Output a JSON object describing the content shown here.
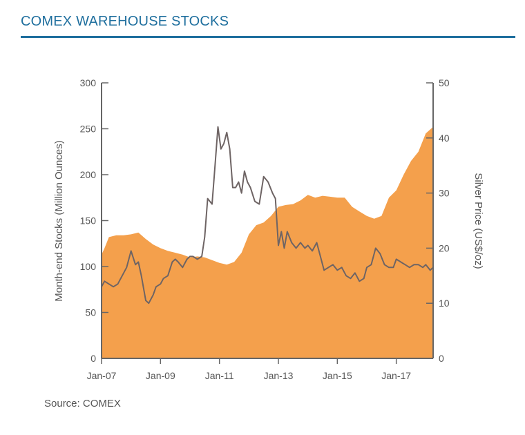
{
  "header": {
    "title": "COMEX WAREHOUSE STOCKS"
  },
  "footer": {
    "source": "Source: COMEX"
  },
  "colors": {
    "accent": "#1f6f9e",
    "area": "#f4a04c",
    "line": "#6e6464",
    "axis": "#666666"
  },
  "chart_data": {
    "type": "area",
    "title": "COMEX WAREHOUSE STOCKS",
    "ylabel": "Month-end Stocks (Million Ounces)",
    "y2label": "Silver Price (US$/oz)",
    "xlim": [
      2007.0,
      2018.25
    ],
    "ylim": [
      0,
      300
    ],
    "y2lim": [
      0,
      50
    ],
    "x_ticks": [
      {
        "value": 2007.0,
        "label": "Jan-07"
      },
      {
        "value": 2009.0,
        "label": "Jan-09"
      },
      {
        "value": 2011.0,
        "label": "Jan-11"
      },
      {
        "value": 2013.0,
        "label": "Jan-13"
      },
      {
        "value": 2015.0,
        "label": "Jan-15"
      },
      {
        "value": 2017.0,
        "label": "Jan-17"
      }
    ],
    "y_ticks": [
      0,
      50,
      100,
      150,
      200,
      250,
      300
    ],
    "y2_ticks": [
      0,
      10,
      20,
      30,
      40,
      50
    ],
    "series": [
      {
        "name": "Month-end Stocks",
        "axis": "left",
        "type": "area",
        "x": [
          2007.0,
          2007.1,
          2007.25,
          2007.5,
          2007.75,
          2008.0,
          2008.25,
          2008.5,
          2008.75,
          2009.0,
          2009.25,
          2009.5,
          2009.75,
          2010.0,
          2010.25,
          2010.5,
          2010.75,
          2011.0,
          2011.25,
          2011.5,
          2011.75,
          2012.0,
          2012.25,
          2012.5,
          2012.75,
          2013.0,
          2013.25,
          2013.5,
          2013.75,
          2014.0,
          2014.25,
          2014.5,
          2014.75,
          2015.0,
          2015.25,
          2015.5,
          2015.75,
          2016.0,
          2016.25,
          2016.5,
          2016.75,
          2017.0,
          2017.25,
          2017.5,
          2017.75,
          2018.0,
          2018.25
        ],
        "values": [
          113,
          120,
          132,
          134,
          134,
          135,
          137,
          130,
          124,
          120,
          117,
          115,
          113,
          110,
          111,
          110,
          107,
          104,
          102,
          105,
          115,
          135,
          145,
          148,
          155,
          165,
          167,
          168,
          172,
          178,
          175,
          177,
          176,
          175,
          175,
          165,
          160,
          155,
          152,
          155,
          175,
          183,
          200,
          215,
          225,
          245,
          252
        ]
      },
      {
        "name": "Silver Price",
        "axis": "right",
        "type": "line",
        "x": [
          2007.0,
          2007.1,
          2007.25,
          2007.4,
          2007.55,
          2007.7,
          2007.85,
          2008.0,
          2008.15,
          2008.25,
          2008.35,
          2008.5,
          2008.6,
          2008.75,
          2008.85,
          2009.0,
          2009.1,
          2009.25,
          2009.4,
          2009.5,
          2009.6,
          2009.75,
          2009.9,
          2010.0,
          2010.1,
          2010.25,
          2010.4,
          2010.5,
          2010.6,
          2010.75,
          2010.85,
          2010.95,
          2011.05,
          2011.15,
          2011.25,
          2011.35,
          2011.45,
          2011.55,
          2011.65,
          2011.75,
          2011.85,
          2011.95,
          2012.05,
          2012.2,
          2012.35,
          2012.5,
          2012.65,
          2012.8,
          2012.9,
          2013.0,
          2013.1,
          2013.2,
          2013.3,
          2013.45,
          2013.6,
          2013.75,
          2013.9,
          2014.0,
          2014.15,
          2014.3,
          2014.45,
          2014.55,
          2014.7,
          2014.85,
          2015.0,
          2015.15,
          2015.3,
          2015.45,
          2015.6,
          2015.75,
          2015.9,
          2016.0,
          2016.15,
          2016.3,
          2016.45,
          2016.6,
          2016.75,
          2016.9,
          2017.0,
          2017.15,
          2017.3,
          2017.45,
          2017.6,
          2017.75,
          2017.9,
          2018.0,
          2018.15,
          2018.25
        ],
        "values": [
          13,
          14,
          13.5,
          13,
          13.5,
          15,
          16.5,
          19.5,
          17,
          17.5,
          15,
          10.5,
          10,
          11.5,
          13,
          13.5,
          14.5,
          15,
          17.5,
          18,
          17.5,
          16.5,
          18,
          18.5,
          18.5,
          18,
          18.5,
          22,
          29,
          28,
          35,
          42,
          38,
          39,
          41,
          38,
          31,
          31,
          32,
          30,
          34,
          32,
          31,
          28.5,
          28,
          33,
          32,
          30,
          29,
          20.5,
          23,
          20,
          23,
          21,
          20,
          21,
          20,
          20.5,
          19.5,
          21,
          18,
          16,
          16.5,
          17,
          16,
          16.5,
          15,
          14.5,
          15.5,
          14,
          14.5,
          16.5,
          17,
          20,
          19,
          17,
          16.5,
          16.5,
          18,
          17.5,
          17,
          16.5,
          17,
          17,
          16.5,
          17,
          16,
          16.5
        ]
      }
    ],
    "source": "Source: COMEX"
  }
}
